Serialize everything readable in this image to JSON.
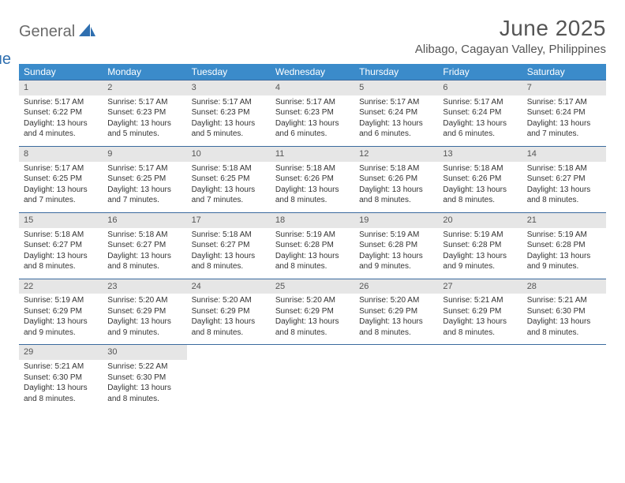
{
  "brand": {
    "general": "General",
    "blue": "Blue"
  },
  "title": "June 2025",
  "location": "Alibago, Cagayan Valley, Philippines",
  "colors": {
    "header_bg": "#3b8bca",
    "week_border": "#3b6a9e",
    "daynum_bg": "#e6e6e6",
    "text": "#333333",
    "title_text": "#555555",
    "logo_gray": "#6a6a6a",
    "logo_blue": "#2f6fb0"
  },
  "dow": [
    "Sunday",
    "Monday",
    "Tuesday",
    "Wednesday",
    "Thursday",
    "Friday",
    "Saturday"
  ],
  "weeks": [
    [
      {
        "n": "1",
        "sr": "Sunrise: 5:17 AM",
        "ss": "Sunset: 6:22 PM",
        "d1": "Daylight: 13 hours",
        "d2": "and 4 minutes."
      },
      {
        "n": "2",
        "sr": "Sunrise: 5:17 AM",
        "ss": "Sunset: 6:23 PM",
        "d1": "Daylight: 13 hours",
        "d2": "and 5 minutes."
      },
      {
        "n": "3",
        "sr": "Sunrise: 5:17 AM",
        "ss": "Sunset: 6:23 PM",
        "d1": "Daylight: 13 hours",
        "d2": "and 5 minutes."
      },
      {
        "n": "4",
        "sr": "Sunrise: 5:17 AM",
        "ss": "Sunset: 6:23 PM",
        "d1": "Daylight: 13 hours",
        "d2": "and 6 minutes."
      },
      {
        "n": "5",
        "sr": "Sunrise: 5:17 AM",
        "ss": "Sunset: 6:24 PM",
        "d1": "Daylight: 13 hours",
        "d2": "and 6 minutes."
      },
      {
        "n": "6",
        "sr": "Sunrise: 5:17 AM",
        "ss": "Sunset: 6:24 PM",
        "d1": "Daylight: 13 hours",
        "d2": "and 6 minutes."
      },
      {
        "n": "7",
        "sr": "Sunrise: 5:17 AM",
        "ss": "Sunset: 6:24 PM",
        "d1": "Daylight: 13 hours",
        "d2": "and 7 minutes."
      }
    ],
    [
      {
        "n": "8",
        "sr": "Sunrise: 5:17 AM",
        "ss": "Sunset: 6:25 PM",
        "d1": "Daylight: 13 hours",
        "d2": "and 7 minutes."
      },
      {
        "n": "9",
        "sr": "Sunrise: 5:17 AM",
        "ss": "Sunset: 6:25 PM",
        "d1": "Daylight: 13 hours",
        "d2": "and 7 minutes."
      },
      {
        "n": "10",
        "sr": "Sunrise: 5:18 AM",
        "ss": "Sunset: 6:25 PM",
        "d1": "Daylight: 13 hours",
        "d2": "and 7 minutes."
      },
      {
        "n": "11",
        "sr": "Sunrise: 5:18 AM",
        "ss": "Sunset: 6:26 PM",
        "d1": "Daylight: 13 hours",
        "d2": "and 8 minutes."
      },
      {
        "n": "12",
        "sr": "Sunrise: 5:18 AM",
        "ss": "Sunset: 6:26 PM",
        "d1": "Daylight: 13 hours",
        "d2": "and 8 minutes."
      },
      {
        "n": "13",
        "sr": "Sunrise: 5:18 AM",
        "ss": "Sunset: 6:26 PM",
        "d1": "Daylight: 13 hours",
        "d2": "and 8 minutes."
      },
      {
        "n": "14",
        "sr": "Sunrise: 5:18 AM",
        "ss": "Sunset: 6:27 PM",
        "d1": "Daylight: 13 hours",
        "d2": "and 8 minutes."
      }
    ],
    [
      {
        "n": "15",
        "sr": "Sunrise: 5:18 AM",
        "ss": "Sunset: 6:27 PM",
        "d1": "Daylight: 13 hours",
        "d2": "and 8 minutes."
      },
      {
        "n": "16",
        "sr": "Sunrise: 5:18 AM",
        "ss": "Sunset: 6:27 PM",
        "d1": "Daylight: 13 hours",
        "d2": "and 8 minutes."
      },
      {
        "n": "17",
        "sr": "Sunrise: 5:18 AM",
        "ss": "Sunset: 6:27 PM",
        "d1": "Daylight: 13 hours",
        "d2": "and 8 minutes."
      },
      {
        "n": "18",
        "sr": "Sunrise: 5:19 AM",
        "ss": "Sunset: 6:28 PM",
        "d1": "Daylight: 13 hours",
        "d2": "and 8 minutes."
      },
      {
        "n": "19",
        "sr": "Sunrise: 5:19 AM",
        "ss": "Sunset: 6:28 PM",
        "d1": "Daylight: 13 hours",
        "d2": "and 9 minutes."
      },
      {
        "n": "20",
        "sr": "Sunrise: 5:19 AM",
        "ss": "Sunset: 6:28 PM",
        "d1": "Daylight: 13 hours",
        "d2": "and 9 minutes."
      },
      {
        "n": "21",
        "sr": "Sunrise: 5:19 AM",
        "ss": "Sunset: 6:28 PM",
        "d1": "Daylight: 13 hours",
        "d2": "and 9 minutes."
      }
    ],
    [
      {
        "n": "22",
        "sr": "Sunrise: 5:19 AM",
        "ss": "Sunset: 6:29 PM",
        "d1": "Daylight: 13 hours",
        "d2": "and 9 minutes."
      },
      {
        "n": "23",
        "sr": "Sunrise: 5:20 AM",
        "ss": "Sunset: 6:29 PM",
        "d1": "Daylight: 13 hours",
        "d2": "and 9 minutes."
      },
      {
        "n": "24",
        "sr": "Sunrise: 5:20 AM",
        "ss": "Sunset: 6:29 PM",
        "d1": "Daylight: 13 hours",
        "d2": "and 8 minutes."
      },
      {
        "n": "25",
        "sr": "Sunrise: 5:20 AM",
        "ss": "Sunset: 6:29 PM",
        "d1": "Daylight: 13 hours",
        "d2": "and 8 minutes."
      },
      {
        "n": "26",
        "sr": "Sunrise: 5:20 AM",
        "ss": "Sunset: 6:29 PM",
        "d1": "Daylight: 13 hours",
        "d2": "and 8 minutes."
      },
      {
        "n": "27",
        "sr": "Sunrise: 5:21 AM",
        "ss": "Sunset: 6:29 PM",
        "d1": "Daylight: 13 hours",
        "d2": "and 8 minutes."
      },
      {
        "n": "28",
        "sr": "Sunrise: 5:21 AM",
        "ss": "Sunset: 6:30 PM",
        "d1": "Daylight: 13 hours",
        "d2": "and 8 minutes."
      }
    ],
    [
      {
        "n": "29",
        "sr": "Sunrise: 5:21 AM",
        "ss": "Sunset: 6:30 PM",
        "d1": "Daylight: 13 hours",
        "d2": "and 8 minutes."
      },
      {
        "n": "30",
        "sr": "Sunrise: 5:22 AM",
        "ss": "Sunset: 6:30 PM",
        "d1": "Daylight: 13 hours",
        "d2": "and 8 minutes."
      },
      null,
      null,
      null,
      null,
      null
    ]
  ]
}
